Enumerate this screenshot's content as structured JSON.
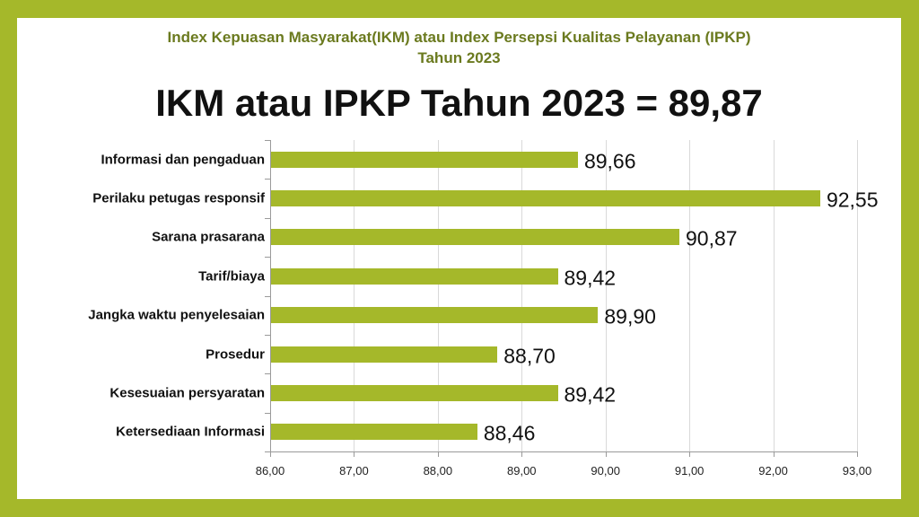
{
  "header": {
    "subtitle_line1": "Index Kepuasan Masyarakat(IKM) atau Index Persepsi Kualitas Pelayanan (IPKP)",
    "subtitle_line2": "Tahun 2023",
    "main_title": "IKM atau IPKP Tahun 2023 = 89,87"
  },
  "colors": {
    "frame": "#a5b82a",
    "bar": "#a5b82a",
    "subtitle": "#6b7a1f",
    "panel": "#ffffff"
  },
  "chart_data": {
    "type": "bar",
    "orientation": "horizontal",
    "title": "IKM atau IPKP Tahun 2023 = 89,87",
    "subtitle": "Index Kepuasan Masyarakat(IKM) atau Index Persepsi Kualitas Pelayanan (IPKP) Tahun 2023",
    "xlabel": "",
    "ylabel": "",
    "categories": [
      "Informasi dan pengaduan",
      "Perilaku petugas responsif",
      "Sarana prasarana",
      "Tarif/biaya",
      "Jangka waktu penyelesaian",
      "Prosedur",
      "Kesesuaian persyaratan",
      "Ketersediaan Informasi"
    ],
    "values": [
      89.66,
      92.55,
      90.87,
      89.42,
      89.9,
      88.7,
      89.42,
      88.46
    ],
    "value_labels": [
      "89,66",
      "92,55",
      "90,87",
      "89,42",
      "89,90",
      "88,70",
      "89,42",
      "88,46"
    ],
    "xlim": [
      86,
      93
    ],
    "xticks": [
      86,
      87,
      88,
      89,
      90,
      91,
      92,
      93
    ],
    "xtick_labels": [
      "86,00",
      "87,00",
      "88,00",
      "89,00",
      "90,00",
      "91,00",
      "92,00",
      "93,00"
    ],
    "grid": "vertical",
    "legend": "none",
    "overall_index": "89,87"
  }
}
